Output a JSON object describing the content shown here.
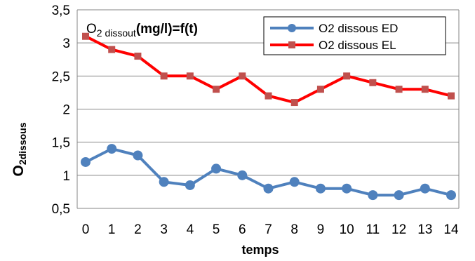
{
  "chart_data": {
    "type": "line",
    "x": [
      0,
      1,
      2,
      3,
      4,
      5,
      6,
      7,
      8,
      9,
      10,
      11,
      12,
      13,
      14
    ],
    "series": [
      {
        "name": "O2 dissous ED",
        "color": "#4F81BD",
        "marker": "circle",
        "values": [
          1.2,
          1.4,
          1.3,
          0.9,
          0.85,
          1.1,
          1.0,
          0.8,
          0.9,
          0.8,
          0.8,
          0.7,
          0.7,
          0.8,
          0.7
        ]
      },
      {
        "name": "O2 dissous EL",
        "color": "#FF0000",
        "marker": "square",
        "values": [
          3.1,
          2.9,
          2.8,
          2.5,
          2.5,
          2.3,
          2.5,
          2.2,
          2.1,
          2.3,
          2.5,
          2.4,
          2.3,
          2.3,
          2.2
        ]
      }
    ],
    "xlabel": "temps",
    "ylabel": {
      "main": "O",
      "sub": "2dissous"
    },
    "annotation": {
      "main": "O",
      "sub": "2 dissout",
      "rest": "(mg/l)=f(t)"
    },
    "x_ticks": [
      "0",
      "1",
      "2",
      "3",
      "4",
      "5",
      "6",
      "7",
      "8",
      "9",
      "10",
      "11",
      "12",
      "13",
      "14"
    ],
    "y_ticks": [
      "0,5",
      "1",
      "1,5",
      "2",
      "2,5",
      "3",
      "3,5"
    ],
    "ylim": [
      0.5,
      3.5
    ],
    "xlim": [
      0,
      14
    ],
    "grid": "horizontal",
    "legend_position": "top-right"
  }
}
